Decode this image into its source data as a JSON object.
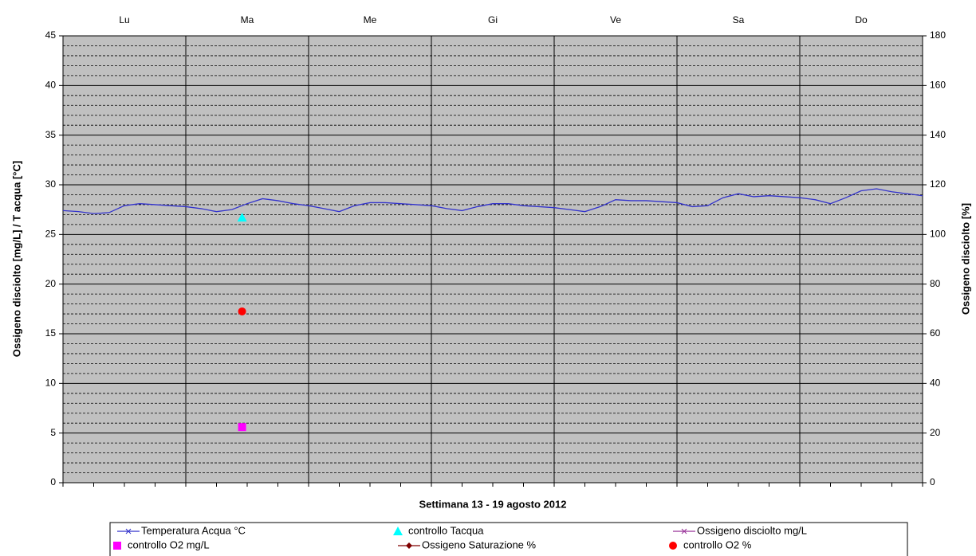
{
  "chart_data": {
    "type": "line",
    "categories": [
      "Lu",
      "Ma",
      "Me",
      "Gi",
      "Ve",
      "Sa",
      "Do"
    ],
    "xlabel": "Settimana  13 - 19 agosto 2012",
    "ylabel": "Ossigeno disciolto [mg/L] / T acqua [°C]",
    "y2label": "Ossigeno disciolto [%]",
    "xlim": [
      0,
      168
    ],
    "xticks": [
      0,
      24,
      48,
      72,
      96,
      120,
      144,
      168
    ],
    "xminorticks": [
      0,
      6,
      12,
      18,
      24,
      30,
      36,
      42,
      48,
      54,
      60,
      66,
      72,
      78,
      84,
      90,
      96,
      102,
      108,
      114,
      120,
      126,
      132,
      138,
      144,
      150,
      156,
      162,
      168
    ],
    "ylim": [
      0,
      45
    ],
    "yticks": [
      0,
      5,
      10,
      15,
      20,
      25,
      30,
      35,
      40,
      45
    ],
    "yminorticks": [
      1,
      2,
      3,
      4,
      6,
      7,
      8,
      9,
      11,
      12,
      13,
      14,
      16,
      17,
      18,
      19,
      21,
      22,
      23,
      24,
      26,
      27,
      28,
      29,
      31,
      32,
      33,
      34,
      36,
      37,
      38,
      39,
      41,
      42,
      43,
      44
    ],
    "y2lim": [
      0,
      180
    ],
    "y2ticks": [
      0,
      20,
      40,
      60,
      80,
      100,
      120,
      140,
      160,
      180
    ],
    "grid": true,
    "background": "#c0c0c0",
    "series": [
      {
        "name": "Temperatura Acqua °C",
        "color": "#3333cc",
        "marker": "x",
        "x": [
          0,
          3,
          6,
          9,
          12,
          15,
          18,
          21,
          24,
          27,
          30,
          33,
          36,
          39,
          42,
          45,
          48,
          51,
          54,
          57,
          60,
          63,
          66,
          69,
          72,
          75,
          78,
          81,
          84,
          87,
          90,
          93,
          96,
          99,
          102,
          105,
          108,
          111,
          114,
          117,
          120,
          123,
          126,
          129,
          132,
          135,
          138,
          141,
          144,
          147,
          150,
          153,
          156,
          159,
          162,
          165,
          168
        ],
        "values": [
          27.4,
          27.3,
          27.1,
          27.2,
          27.9,
          28.1,
          28.0,
          27.9,
          27.8,
          27.6,
          27.3,
          27.5,
          28.1,
          28.6,
          28.4,
          28.1,
          27.9,
          27.6,
          27.3,
          27.9,
          28.2,
          28.2,
          28.1,
          28.0,
          27.9,
          27.6,
          27.4,
          27.8,
          28.1,
          28.1,
          27.9,
          27.8,
          27.7,
          27.5,
          27.3,
          27.8,
          28.5,
          28.4,
          28.4,
          28.3,
          28.2,
          27.8,
          27.9,
          28.7,
          29.1,
          28.8,
          28.9,
          28.8,
          28.7,
          28.5,
          28.1,
          28.7,
          29.4,
          29.6,
          29.3,
          29.1,
          28.9
        ]
      },
      {
        "name": "controllo Tacqua",
        "color": "#00ffff",
        "marker": "triangle",
        "x": [
          35
        ],
        "values": [
          26.7
        ]
      },
      {
        "name": "Ossigeno disciolto mg/L",
        "color": "#993399",
        "marker": "x",
        "x": [],
        "values": []
      },
      {
        "name": "controllo O2 mg/L",
        "color": "#ff00ff",
        "marker": "square",
        "x": [
          35
        ],
        "values": [
          5.6
        ]
      },
      {
        "name": "Ossigeno Saturazione %",
        "color": "#800000",
        "marker": "diamond",
        "axis": "y2",
        "x": [],
        "values": []
      },
      {
        "name": "controllo O2 %",
        "color": "#ff0000",
        "marker": "circle",
        "axis": "y2",
        "x": [
          35
        ],
        "values": [
          69
        ]
      }
    ]
  }
}
